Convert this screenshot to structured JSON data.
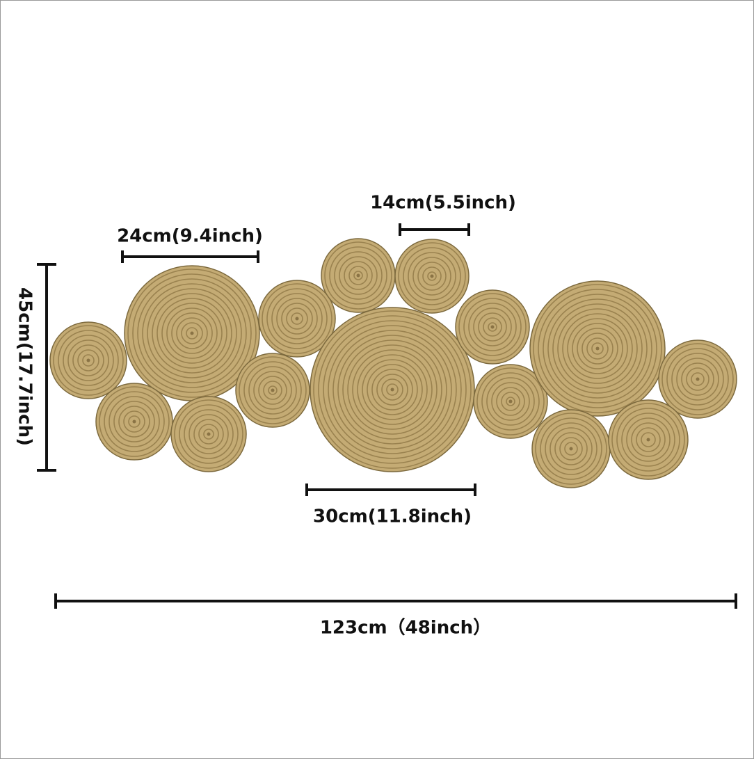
{
  "dimensions": {
    "small_mat": "14cm(5.5inch)",
    "medium_mat": "24cm(9.4inch)",
    "large_mat": "30cm(11.8inch)",
    "height": "45cm(17.7inch)",
    "length": "123cm（48inch）"
  }
}
